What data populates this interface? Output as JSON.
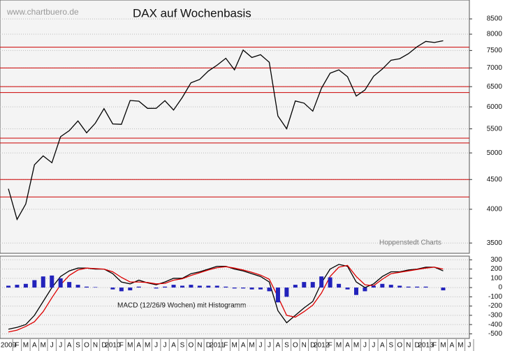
{
  "chart_data": [
    {
      "type": "line",
      "title": "DAX auf Wochenbasis",
      "annotations": [
        "www.chartbuero.de",
        "Hoppenstedt Charts"
      ],
      "series": [
        {
          "color": "#000000",
          "values": [
            4338,
            3843,
            4085,
            4770,
            4941,
            4809,
            5332,
            5459,
            5675,
            5415,
            5625,
            5957,
            5608,
            5598,
            6154,
            6136,
            5964,
            5966,
            6148,
            5925,
            6229,
            6601,
            6688,
            6914,
            7077,
            7273,
            6946,
            7514,
            7294,
            7376,
            7159,
            5785,
            5502,
            6141,
            6089,
            5898,
            6458,
            6856,
            6947,
            6761,
            6264,
            6416,
            6772,
            6970,
            7216,
            7260,
            7405,
            7612,
            7776,
            7741,
            7795,
            null,
            null,
            null
          ]
        }
      ],
      "log_scale": true,
      "ylim": [
        3360,
        9160
      ],
      "yticks": [
        3500,
        4000,
        4500,
        5000,
        5500,
        6000,
        6500,
        7000,
        7500,
        8000,
        8500
      ],
      "hlines": [
        7600,
        7000,
        6500,
        6350,
        5300,
        5200,
        4500,
        4200
      ],
      "hline_color": "#cc0000"
    },
    {
      "type": "line",
      "title": "MACD (12/26/9 Wochen) mit Histogramm",
      "categories": [
        "2009",
        "F",
        "M",
        "A",
        "M",
        "J",
        "J",
        "A",
        "S",
        "O",
        "N",
        "D",
        "2010",
        "F",
        "M",
        "A",
        "M",
        "J",
        "J",
        "A",
        "S",
        "O",
        "N",
        "D",
        "2011",
        "F",
        "M",
        "A",
        "M",
        "J",
        "J",
        "A",
        "S",
        "O",
        "N",
        "D",
        "2012",
        "F",
        "M",
        "A",
        "M",
        "J",
        "J",
        "A",
        "S",
        "O",
        "N",
        "D",
        "2013",
        "F",
        "M",
        "A",
        "M",
        "J"
      ],
      "series": [
        {
          "color": "#000000",
          "values": [
            -450,
            -430,
            -400,
            -300,
            -150,
            0,
            120,
            180,
            210,
            210,
            200,
            200,
            150,
            60,
            40,
            80,
            50,
            30,
            60,
            100,
            100,
            150,
            170,
            200,
            230,
            230,
            200,
            180,
            150,
            120,
            60,
            -250,
            -380,
            -300,
            -220,
            -150,
            50,
            200,
            250,
            230,
            60,
            0,
            40,
            120,
            170,
            170,
            190,
            200,
            220,
            220,
            180,
            null,
            null,
            null
          ]
        },
        {
          "color": "#dd0000",
          "values": [
            -480,
            -460,
            -420,
            -370,
            -260,
            -110,
            30,
            130,
            190,
            210,
            205,
            200,
            170,
            110,
            60,
            60,
            55,
            40,
            45,
            80,
            95,
            130,
            160,
            190,
            215,
            225,
            210,
            190,
            165,
            135,
            90,
            -100,
            -300,
            -320,
            -260,
            -190,
            -60,
            120,
            220,
            240,
            120,
            30,
            20,
            90,
            150,
            165,
            180,
            195,
            210,
            220,
            200,
            null,
            null,
            null
          ]
        },
        {
          "color": "#2222bb",
          "kind": "bar",
          "values": [
            20,
            30,
            40,
            80,
            120,
            130,
            100,
            60,
            30,
            10,
            5,
            0,
            -20,
            -40,
            -30,
            10,
            0,
            -10,
            10,
            30,
            20,
            30,
            20,
            20,
            20,
            10,
            -10,
            -10,
            -20,
            -20,
            -40,
            -160,
            -100,
            30,
            60,
            60,
            120,
            110,
            40,
            -20,
            -80,
            -40,
            20,
            40,
            30,
            20,
            10,
            10,
            10,
            0,
            -30,
            null,
            null,
            null
          ]
        }
      ],
      "ylim": [
        -550,
        340
      ],
      "yticks": [
        -500,
        -400,
        -300,
        -200,
        -100,
        0,
        100,
        200,
        300
      ]
    }
  ]
}
